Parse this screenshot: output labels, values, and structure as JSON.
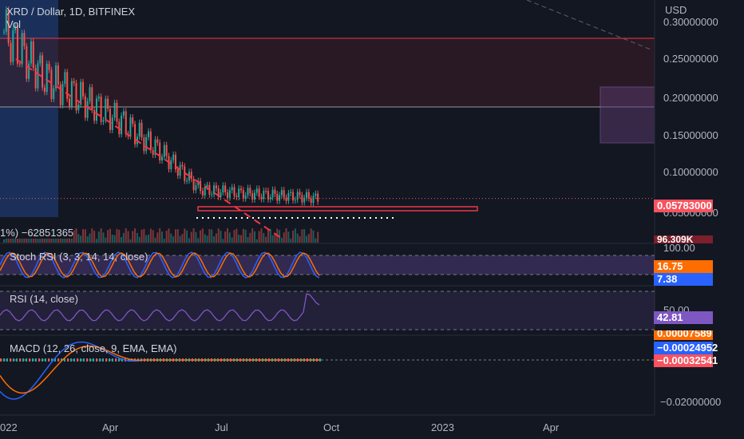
{
  "header": {
    "symbol_line": "XRD / Dollar, 1D, BITFINEX",
    "vol_label": "Vol",
    "currency": "USD",
    "volume_legend": "1%) −62851365"
  },
  "price_axis": {
    "labels": [
      "0.30000000",
      "0.25000000",
      "0.20000000",
      "0.15000000",
      "0.10000000",
      "0.05000000"
    ],
    "last_price": "0.05783000",
    "volume_badge": "96.309K"
  },
  "stoch": {
    "legend": "Stoch RSI (3, 3, 14, 14, close)",
    "axis_top": "100.00",
    "k_value": "16.75",
    "d_value": "7.38"
  },
  "rsi": {
    "legend": "RSI (14, close)",
    "axis_mid": "50.00",
    "value": "42.81"
  },
  "macd": {
    "legend": "MACD (12, 26, close, 9, EMA, EMA)",
    "histogram": "0.00007589",
    "macd_value": "−0.00024952",
    "signal_value": "−0.00032541",
    "axis_low": "−0.02000000"
  },
  "time_axis": [
    "022",
    "Apr",
    "Jul",
    "Oct",
    "2023",
    "Apr"
  ],
  "colors": {
    "background": "#131722",
    "up": "#26a69a",
    "down": "#ef5350",
    "trend": "#f23645",
    "stoch_band": "#7e57c2",
    "rsi_line": "#7e57c2",
    "macd_line": "#2962ff",
    "signal_line": "#ff6d00",
    "last_price_badge": "#f7525f",
    "stoch_k_badge": "#ff6d00",
    "stoch_d_badge": "#2962ff"
  },
  "chart_data": {
    "type": "line",
    "title": "XRD / Dollar, 1D, BITFINEX",
    "ylabel": "USD",
    "log_scale": false,
    "ylim": [
      0.04,
      0.31
    ],
    "x": [
      "2022-01",
      "2022-02",
      "2022-03",
      "2022-04",
      "2022-05",
      "2022-06",
      "2022-07",
      "2022-08",
      "2022-09"
    ],
    "series": [
      {
        "values": [
          0.28,
          0.22,
          0.19,
          0.16,
          0.12,
          0.07,
          0.065,
          0.062,
          0.058
        ]
      }
    ],
    "horizontal_levels": [
      0.275,
      0.188
    ],
    "last_value": 0.05783
  }
}
